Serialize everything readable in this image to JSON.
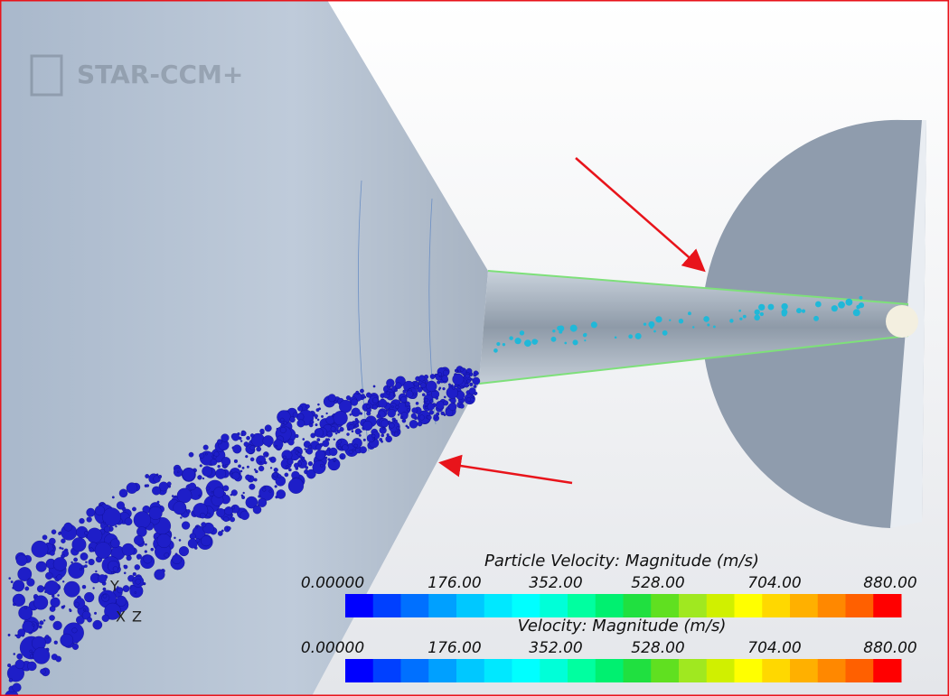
{
  "logo": "STAR-CCM+",
  "legends": [
    {
      "title": "Particle Velocity: Magnitude (m/s)",
      "ticks": [
        "0.00000",
        "176.00",
        "352.00",
        "528.00",
        "704.00",
        "880.00"
      ]
    },
    {
      "title": "Velocity: Magnitude (m/s)",
      "ticks": [
        "0.00000",
        "176.00",
        "352.00",
        "528.00",
        "704.00",
        "880.00"
      ]
    }
  ],
  "axes": [
    "Y",
    "X",
    "Z"
  ]
}
